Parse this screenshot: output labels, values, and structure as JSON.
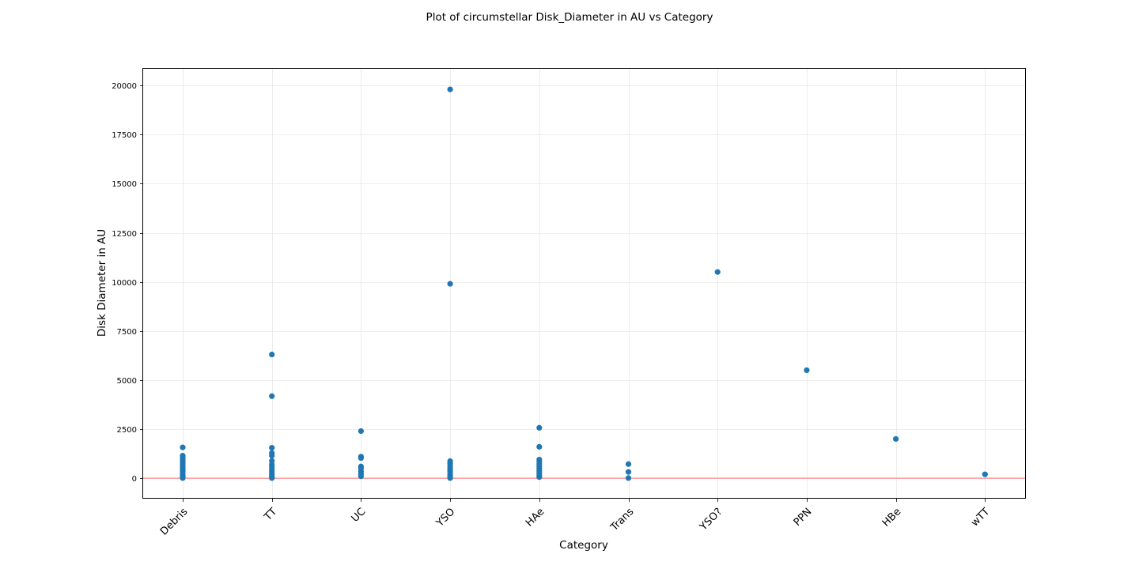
{
  "chart_data": {
    "type": "scatter",
    "title": "Plot of circumstellar Disk_Diameter in AU vs Category",
    "xlabel": "Category",
    "ylabel": "Disk Diameter in AU",
    "categories": [
      "Debris",
      "TT",
      "UC",
      "YSO",
      "HAe",
      "Trans",
      "YSO?",
      "PPN",
      "HBe",
      "wTT"
    ],
    "ylim": [
      -1000,
      20850
    ],
    "yticks": [
      0,
      2500,
      5000,
      7500,
      10000,
      12500,
      15000,
      17500,
      20000
    ],
    "ytick_labels": [
      "0",
      "2500",
      "5000",
      "7500",
      "10000",
      "12500",
      "15000",
      "17500",
      "20000"
    ],
    "grid": true,
    "reference_line": {
      "y": 0,
      "color": "#ff9999"
    },
    "marker_color": "#1f77b4",
    "series": [
      {
        "points": [
          {
            "category": "Debris",
            "y": 1570
          },
          {
            "category": "Debris",
            "y": 1150
          },
          {
            "category": "Debris",
            "y": 1050
          },
          {
            "category": "Debris",
            "y": 950
          },
          {
            "category": "Debris",
            "y": 850
          },
          {
            "category": "Debris",
            "y": 750
          },
          {
            "category": "Debris",
            "y": 650
          },
          {
            "category": "Debris",
            "y": 550
          },
          {
            "category": "Debris",
            "y": 450
          },
          {
            "category": "Debris",
            "y": 350
          },
          {
            "category": "Debris",
            "y": 250
          },
          {
            "category": "Debris",
            "y": 150
          },
          {
            "category": "Debris",
            "y": 60
          },
          {
            "category": "Debris",
            "y": 10
          },
          {
            "category": "TT",
            "y": 6300
          },
          {
            "category": "TT",
            "y": 4180
          },
          {
            "category": "TT",
            "y": 1550
          },
          {
            "category": "TT",
            "y": 1280
          },
          {
            "category": "TT",
            "y": 1150
          },
          {
            "category": "TT",
            "y": 880
          },
          {
            "category": "TT",
            "y": 700
          },
          {
            "category": "TT",
            "y": 580
          },
          {
            "category": "TT",
            "y": 450
          },
          {
            "category": "TT",
            "y": 330
          },
          {
            "category": "TT",
            "y": 200
          },
          {
            "category": "TT",
            "y": 80
          },
          {
            "category": "TT",
            "y": 10
          },
          {
            "category": "UC",
            "y": 2400
          },
          {
            "category": "UC",
            "y": 1100
          },
          {
            "category": "UC",
            "y": 1030
          },
          {
            "category": "UC",
            "y": 600
          },
          {
            "category": "UC",
            "y": 500
          },
          {
            "category": "UC",
            "y": 350
          },
          {
            "category": "UC",
            "y": 220
          },
          {
            "category": "UC",
            "y": 100
          },
          {
            "category": "YSO",
            "y": 19800
          },
          {
            "category": "YSO",
            "y": 9900
          },
          {
            "category": "YSO",
            "y": 870
          },
          {
            "category": "YSO",
            "y": 760
          },
          {
            "category": "YSO",
            "y": 650
          },
          {
            "category": "YSO",
            "y": 550
          },
          {
            "category": "YSO",
            "y": 450
          },
          {
            "category": "YSO",
            "y": 350
          },
          {
            "category": "YSO",
            "y": 250
          },
          {
            "category": "YSO",
            "y": 150
          },
          {
            "category": "YSO",
            "y": 60
          },
          {
            "category": "YSO",
            "y": 10
          },
          {
            "category": "HAe",
            "y": 2570
          },
          {
            "category": "HAe",
            "y": 1600
          },
          {
            "category": "HAe",
            "y": 950
          },
          {
            "category": "HAe",
            "y": 850
          },
          {
            "category": "HAe",
            "y": 720
          },
          {
            "category": "HAe",
            "y": 600
          },
          {
            "category": "HAe",
            "y": 480
          },
          {
            "category": "HAe",
            "y": 370
          },
          {
            "category": "HAe",
            "y": 260
          },
          {
            "category": "HAe",
            "y": 150
          },
          {
            "category": "HAe",
            "y": 60
          },
          {
            "category": "Trans",
            "y": 720
          },
          {
            "category": "Trans",
            "y": 320
          },
          {
            "category": "Trans",
            "y": 10
          },
          {
            "category": "YSO?",
            "y": 10500
          },
          {
            "category": "PPN",
            "y": 5500
          },
          {
            "category": "HBe",
            "y": 2000
          },
          {
            "category": "wTT",
            "y": 200
          }
        ]
      }
    ]
  }
}
